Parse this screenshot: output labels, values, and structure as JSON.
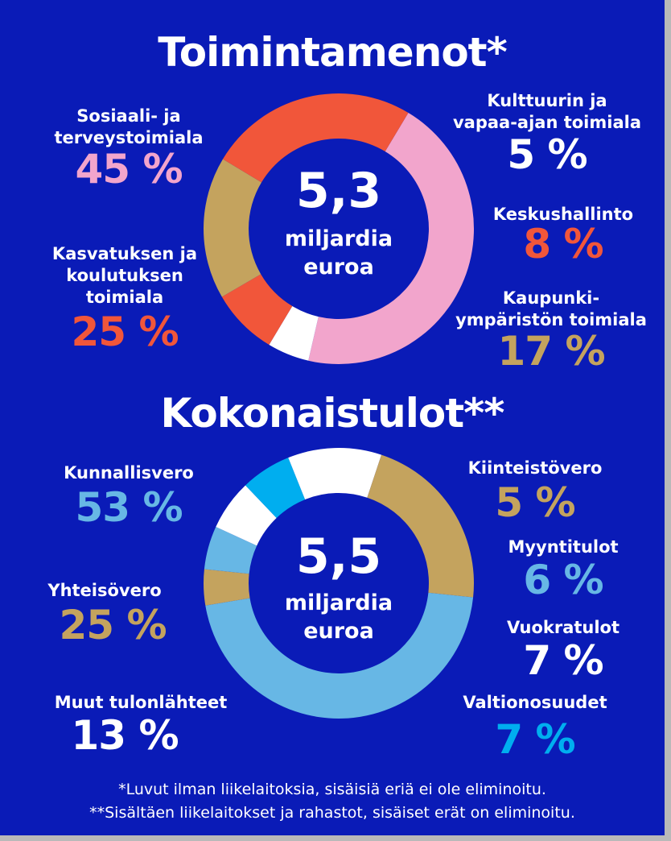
{
  "colors": {
    "background": "#0a1bb7",
    "pink": "#f2a5cc",
    "orange": "#f1563a",
    "tan": "#c4a35e",
    "light_blue": "#67b7e5",
    "cyan": "#00aeef",
    "white": "#ffffff"
  },
  "chart_data": [
    {
      "type": "pie",
      "title": "Toimintamenot*",
      "center": {
        "value": "5,3",
        "line1": "miljardia",
        "line2": "euroa"
      },
      "slices": [
        {
          "label_lines": [
            "Sosiaali- ja",
            "terveystoimiala"
          ],
          "pct_text": "45 %",
          "value": 45,
          "color": "#f2a5cc"
        },
        {
          "label_lines": [
            "Kulttuurin ja",
            "vapaa-ajan toimiala"
          ],
          "pct_text": "5 %",
          "value": 5,
          "color": "#ffffff"
        },
        {
          "label_lines": [
            "Keskushallinto"
          ],
          "pct_text": "8 %",
          "value": 8,
          "color": "#f1563a"
        },
        {
          "label_lines": [
            "Kaupunki-",
            "ympäristön toimiala"
          ],
          "pct_text": "17 %",
          "value": 17,
          "color": "#c4a35e"
        },
        {
          "label_lines": [
            "Kasvatuksen ja",
            "koulutuksen",
            "toimiala"
          ],
          "pct_text": "25 %",
          "value": 25,
          "color": "#f1563a"
        }
      ]
    },
    {
      "type": "pie",
      "title": "Kokonaistulot**",
      "center": {
        "value": "5,5",
        "line1": "miljardia",
        "line2": "euroa"
      },
      "slices": [
        {
          "label_lines": [
            "Kunnallisvero"
          ],
          "pct_text": "53 %",
          "value": 53,
          "color": "#67b7e5"
        },
        {
          "label_lines": [
            "Kiinteistövero"
          ],
          "pct_text": "5 %",
          "value": 5,
          "color": "#c4a35e"
        },
        {
          "label_lines": [
            "Myyntitulot"
          ],
          "pct_text": "6 %",
          "value": 6,
          "color": "#67b7e5"
        },
        {
          "label_lines": [
            "Vuokratulot"
          ],
          "pct_text": "7 %",
          "value": 7,
          "color": "#ffffff"
        },
        {
          "label_lines": [
            "Valtionosuudet"
          ],
          "pct_text": "7 %",
          "value": 7,
          "color": "#00aeef"
        },
        {
          "label_lines": [
            "Muut tulonlähteet"
          ],
          "pct_text": "13 %",
          "value": 13,
          "color": "#ffffff"
        },
        {
          "label_lines": [
            "Yhteisövero"
          ],
          "pct_text": "25 %",
          "value": 25,
          "color": "#c4a35e"
        }
      ]
    }
  ],
  "footnotes": [
    "*Luvut ilman liikelaitoksia, sisäisiä eriä ei ole eliminoitu.",
    "**Sisältäen liikelaitokset ja rahastot, sisäiset erät on eliminoitu."
  ]
}
